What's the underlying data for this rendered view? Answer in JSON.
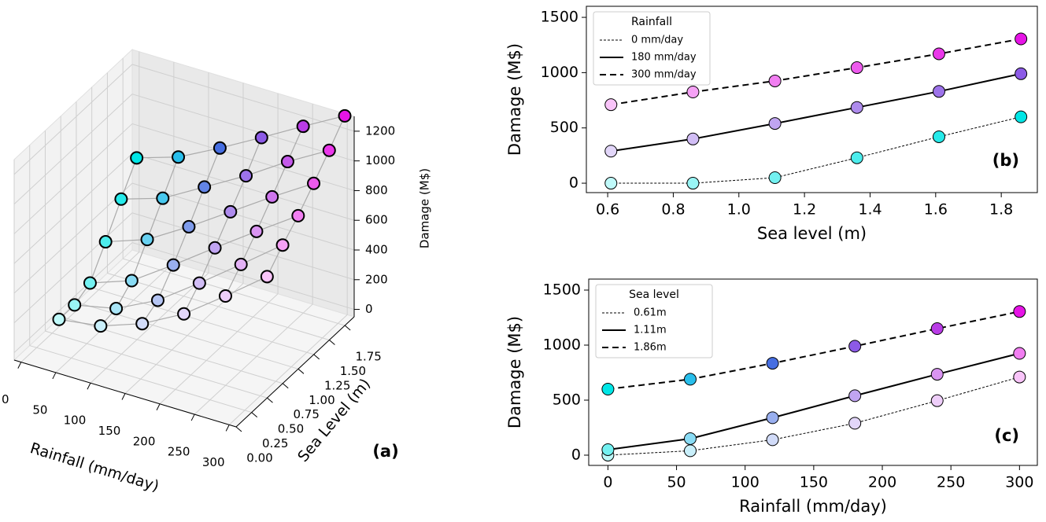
{
  "chart_data": [
    {
      "type": "scatter3d",
      "x_label": "Rainfall (mm/day)",
      "y_label": "Sea Level (m)",
      "z_label": "Damage (M$)",
      "panel_label": "(a)",
      "x": [
        0,
        60,
        120,
        180,
        240,
        300
      ],
      "y": [
        0.61,
        0.86,
        1.11,
        1.36,
        1.61,
        1.86
      ],
      "z": [
        [
          0,
          0,
          50,
          230,
          420,
          600
        ],
        [
          40,
          60,
          150,
          330,
          510,
          690
        ],
        [
          140,
          200,
          340,
          500,
          670,
          835
        ],
        [
          290,
          400,
          540,
          685,
          830,
          990
        ],
        [
          495,
          610,
          735,
          870,
          1010,
          1150
        ],
        [
          710,
          825,
          925,
          1045,
          1170,
          1305
        ]
      ],
      "colors": [
        [
          "#bff9f9",
          "#99f5f5",
          "#73f1f1",
          "#4ceded",
          "#26eaea",
          "#00e6e6"
        ],
        [
          "#c9effa",
          "#a9e5f7",
          "#89dbf4",
          "#68d1f1",
          "#48c8ee",
          "#28beeb"
        ],
        [
          "#d1dbf8",
          "#b5c5f3",
          "#99afef",
          "#7d9aea",
          "#6284e6",
          "#466ee1"
        ],
        [
          "#e2d6f9",
          "#d1bdf5",
          "#c0a4f1",
          "#ae8bed",
          "#9d73ea",
          "#8c5ae6"
        ],
        [
          "#eecef9",
          "#e3b1f5",
          "#d994f1",
          "#ce76ed",
          "#c459ea",
          "#b93ce6"
        ],
        [
          "#f9c4f9",
          "#f5a1f5",
          "#f17ef1",
          "#ed5aed",
          "#ea37ea",
          "#e614e6"
        ]
      ],
      "xlim": [
        -10,
        310
      ],
      "ylim": [
        0,
        1.9
      ],
      "zlim": [
        -50,
        1300
      ],
      "xticks": [
        0,
        50,
        100,
        150,
        200,
        250,
        300
      ],
      "yticks": [
        {
          "value": 0,
          "label": "0.00"
        },
        0.25,
        {
          "value": 0.5,
          "label": "0.50"
        },
        0.75,
        {
          "value": 1,
          "label": "1.00"
        },
        1.25,
        {
          "value": 1.5,
          "label": "1.50"
        },
        1.75
      ],
      "zticks": [
        0,
        200,
        400,
        600,
        800,
        1000,
        1200
      ],
      "surface_color": "#aaaaaa",
      "grid": true
    },
    {
      "type": "line",
      "x_label": "Sea level (m)",
      "y_label": "Damage (M$)",
      "panel_label": "(b)",
      "legend_title": "Rainfall",
      "legend": "upper left",
      "x": [
        0.61,
        0.86,
        1.11,
        1.36,
        1.61,
        1.86
      ],
      "series": [
        {
          "name": "0 mm/day",
          "color": "#000000",
          "linestyle": "dotted",
          "values": [
            0,
            0,
            50,
            230,
            420,
            600
          ],
          "marker_colors": [
            "#bff9f9",
            "#99f5f5",
            "#73f1f1",
            "#4ceded",
            "#26eaea",
            "#00e6e6"
          ]
        },
        {
          "name": "180 mm/day",
          "color": "#000000",
          "linestyle": "solid",
          "values": [
            290,
            400,
            540,
            685,
            830,
            990
          ],
          "marker_colors": [
            "#e2d6f9",
            "#d1bdf5",
            "#c0a4f1",
            "#ae8bed",
            "#9d73ea",
            "#8c5ae6"
          ]
        },
        {
          "name": "300 mm/day",
          "color": "#000000",
          "linestyle": "dashed",
          "values": [
            710,
            825,
            925,
            1045,
            1170,
            1305
          ],
          "marker_colors": [
            "#f9c4f9",
            "#f5a1f5",
            "#f17ef1",
            "#ed5aed",
            "#ea37ea",
            "#e614e6"
          ]
        }
      ],
      "xlim": [
        0.535,
        1.91
      ],
      "ylim": [
        -85,
        1600
      ],
      "xticks": [
        0.6,
        0.8,
        {
          "value": 1,
          "label": "1.0"
        },
        1.2,
        1.4,
        1.6,
        1.8
      ],
      "yticks": [
        0,
        500,
        1000,
        1500
      ]
    },
    {
      "type": "line",
      "x_label": "Rainfall (mm/day)",
      "y_label": "Damage (M$)",
      "panel_label": "(c)",
      "legend_title": "Sea level",
      "legend": "upper left",
      "x": [
        0,
        60,
        120,
        180,
        240,
        300
      ],
      "series": [
        {
          "name": "0.61m",
          "color": "#000000",
          "linestyle": "dotted",
          "values": [
            0,
            40,
            140,
            290,
            495,
            710
          ],
          "marker_colors": [
            "#bff9f9",
            "#c9effa",
            "#d1dbf8",
            "#e2d6f9",
            "#eecef9",
            "#f9c4f9"
          ]
        },
        {
          "name": "1.11m",
          "color": "#000000",
          "linestyle": "solid",
          "values": [
            50,
            150,
            340,
            540,
            735,
            925
          ],
          "marker_colors": [
            "#73f1f1",
            "#89dbf4",
            "#99afef",
            "#c0a4f1",
            "#d994f1",
            "#f17ef1"
          ]
        },
        {
          "name": "1.86m",
          "color": "#000000",
          "linestyle": "dashed",
          "values": [
            600,
            690,
            835,
            990,
            1150,
            1305
          ],
          "marker_colors": [
            "#00e6e6",
            "#28beeb",
            "#466ee1",
            "#8c5ae6",
            "#b93ce6",
            "#e614e6"
          ]
        }
      ],
      "xlim": [
        -14,
        313
      ],
      "ylim": [
        -93,
        1600
      ],
      "xticks": [
        0,
        50,
        100,
        150,
        200,
        250,
        300
      ],
      "yticks": [
        0,
        500,
        1000,
        1500
      ]
    }
  ]
}
